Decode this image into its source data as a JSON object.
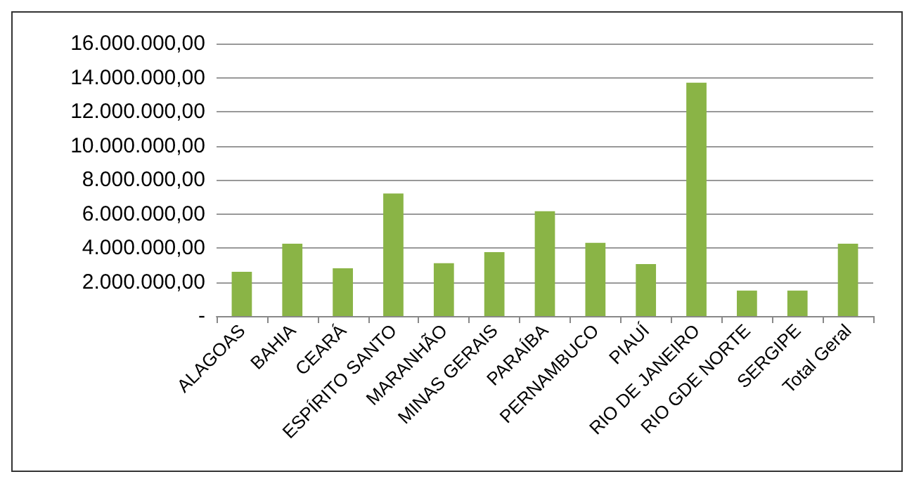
{
  "chart_data": {
    "type": "bar",
    "categories": [
      "ALAGOAS",
      "BAHIA",
      "CEARÁ",
      "ESPÍRITO SANTO",
      "MARANHÃO",
      "MINAS GERAIS",
      "PARAÍBA",
      "PERNAMBUCO",
      "PIAUÍ",
      "RIO DE JANEIRO",
      "RIO GDE NORTE",
      "SERGIPE",
      "Total Geral"
    ],
    "values": [
      2600000,
      4250000,
      2800000,
      7200000,
      3100000,
      3750000,
      6150000,
      4300000,
      3050000,
      13700000,
      1500000,
      1500000,
      4250000
    ],
    "color": "#8ab446",
    "ylim": [
      0,
      16000000
    ],
    "yticks": [
      {
        "value": 0,
        "label": "-"
      },
      {
        "value": 2000000,
        "label": "2.000.000,00"
      },
      {
        "value": 4000000,
        "label": "4.000.000,00"
      },
      {
        "value": 6000000,
        "label": "6.000.000,00"
      },
      {
        "value": 8000000,
        "label": "8.000.000,00"
      },
      {
        "value": 10000000,
        "label": "10.000.000,00"
      },
      {
        "value": 12000000,
        "label": "12.000.000,00"
      },
      {
        "value": 14000000,
        "label": "14.000.000,00"
      },
      {
        "value": 16000000,
        "label": "16.000.000,00"
      }
    ],
    "grid": "y"
  }
}
